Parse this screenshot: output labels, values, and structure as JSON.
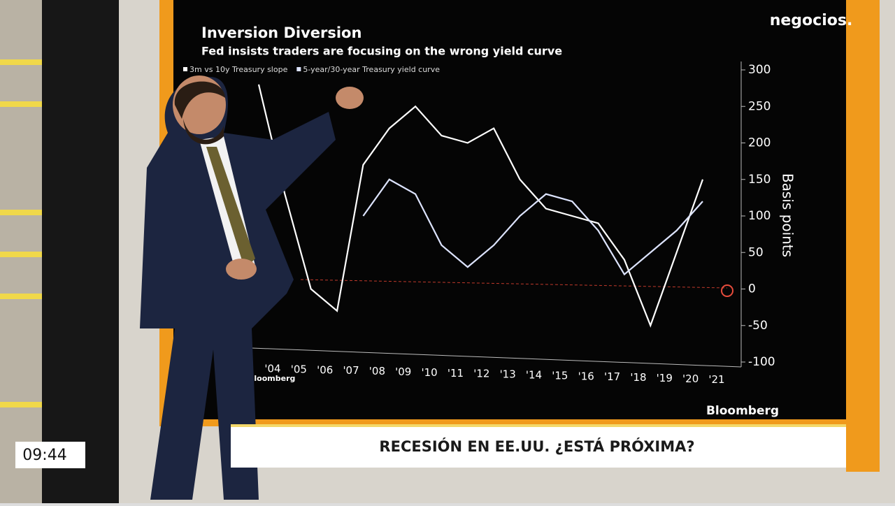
{
  "channel": "negocios.",
  "clock": "09:44",
  "headline": "RECESIÓN EN EE.UU. ¿ESTÁ PRÓXIMA?",
  "screen_logo": "Bloomberg",
  "chart_data": {
    "type": "line",
    "title": "Inversion Diversion",
    "subtitle": "Fed insists traders are focusing on the wrong yield curve",
    "y_label": "Basis points",
    "source": "Bloomberg",
    "categories": [
      "'04",
      "'05",
      "'06",
      "'07",
      "'08",
      "'09",
      "'10",
      "'11",
      "'12",
      "'13",
      "'14",
      "'15",
      "'16",
      "'17",
      "'18",
      "'19",
      "'20",
      "'21"
    ],
    "series": [
      {
        "name": "3m vs 10y Treasury slope",
        "color": "#ffffff",
        "values": [
          280,
          130,
          0,
          -30,
          170,
          220,
          250,
          210,
          200,
          220,
          150,
          110,
          100,
          90,
          40,
          -50,
          50,
          150
        ]
      },
      {
        "name": "5-year/30-year Treasury yield curve",
        "color": "#dde4ff",
        "values": [
          null,
          null,
          null,
          null,
          100,
          150,
          130,
          60,
          30,
          60,
          100,
          130,
          120,
          80,
          20,
          50,
          80,
          120
        ]
      }
    ],
    "ylim": [
      -100,
      300
    ],
    "yticks": [
      300,
      250,
      200,
      150,
      100,
      50,
      0,
      -50,
      -100
    ],
    "grid": false
  }
}
